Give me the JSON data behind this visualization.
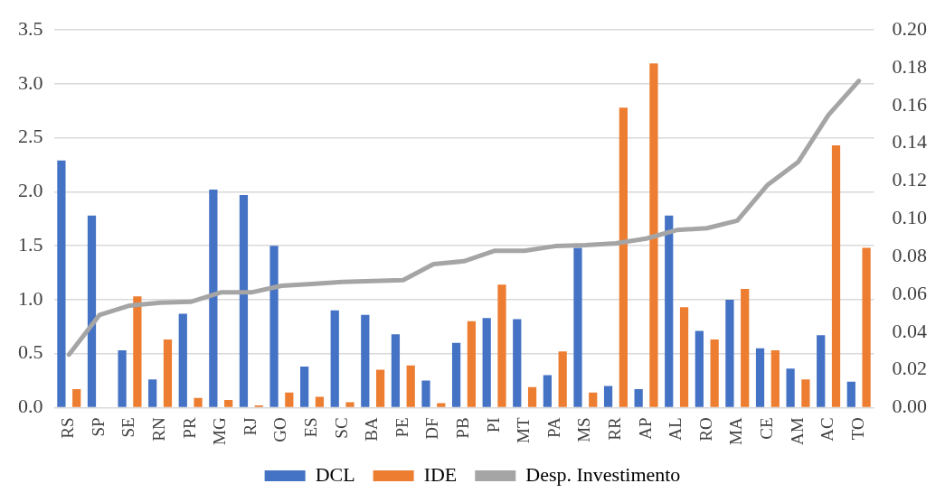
{
  "chart_data": {
    "type": "bar",
    "categories": [
      "RS",
      "SP",
      "SE",
      "RN",
      "PR",
      "MG",
      "RJ",
      "GO",
      "ES",
      "SC",
      "BA",
      "PE",
      "DF",
      "PB",
      "PI",
      "MT",
      "PA",
      "MS",
      "RR",
      "AP",
      "AL",
      "RO",
      "MA",
      "CE",
      "AM",
      "AC",
      "TO"
    ],
    "series": [
      {
        "name": "DCL",
        "color": "#4472c4",
        "values": [
          2.29,
          1.78,
          0.53,
          0.26,
          0.87,
          2.02,
          1.97,
          1.5,
          0.38,
          0.9,
          0.86,
          0.68,
          0.25,
          0.6,
          0.83,
          0.82,
          0.3,
          1.48,
          0.2,
          0.17,
          1.78,
          0.71,
          1.0,
          0.55,
          0.36,
          0.67,
          0.24
        ]
      },
      {
        "name": "IDE",
        "color": "#ed7d31",
        "values": [
          0.17,
          0,
          1.03,
          0.63,
          0.09,
          0.07,
          0.02,
          0.14,
          0.1,
          0.05,
          0.35,
          0.39,
          0.04,
          0.8,
          1.14,
          0.19,
          0.52,
          0.14,
          2.78,
          3.19,
          0.93,
          0.63,
          1.1,
          0.53,
          0.26,
          2.43,
          1.48
        ]
      },
      {
        "name": "Desp. Investimento",
        "type": "line",
        "axis": "y2",
        "color": "#a5a5a5",
        "marker": "none",
        "values": [
          0.028,
          0.049,
          0.054,
          0.0555,
          0.056,
          0.061,
          0.061,
          0.0645,
          0.0655,
          0.0665,
          0.067,
          0.0675,
          0.076,
          0.0775,
          0.083,
          0.083,
          0.0855,
          0.086,
          0.087,
          0.0895,
          0.094,
          0.095,
          0.099,
          0.118,
          0.13,
          0.155,
          0.173
        ]
      }
    ],
    "ylim": [
      0,
      3.5
    ],
    "yticks": [
      {
        "value": 0,
        "label": "0.0"
      },
      0.5,
      {
        "value": 1,
        "label": "1.0"
      },
      1.5,
      {
        "value": 2,
        "label": "2.0"
      },
      2.5,
      {
        "value": 3,
        "label": "3.0"
      },
      3.5
    ],
    "y2lim": [
      0,
      0.2
    ],
    "y2ticks": [
      {
        "value": 0,
        "label": "0.00"
      },
      0.02,
      0.04,
      0.06,
      0.08,
      {
        "value": 0.1,
        "label": "0.10"
      },
      0.12,
      0.14,
      0.16,
      0.18,
      {
        "value": 0.2,
        "label": "0.20"
      }
    ],
    "grid": "y",
    "legend": "bottom"
  }
}
